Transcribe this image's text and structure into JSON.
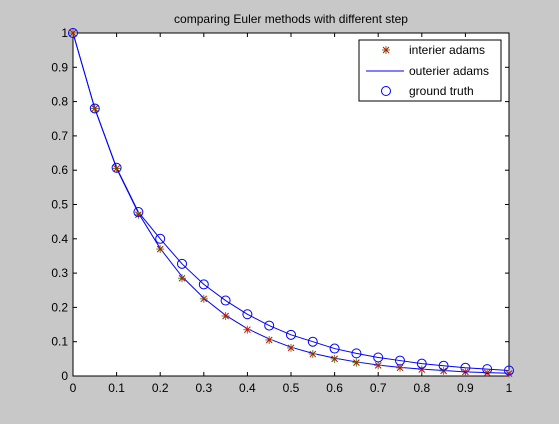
{
  "chart_data": {
    "type": "line",
    "title": "comparing Euler methods with different step",
    "xlabel": "",
    "ylabel": "",
    "xlim": [
      0,
      1
    ],
    "ylim": [
      0,
      1
    ],
    "xticks": [
      "0",
      "0.1",
      "0.2",
      "0.3",
      "0.4",
      "0.5",
      "0.6",
      "0.7",
      "0.8",
      "0.9",
      "1"
    ],
    "yticks": [
      "0",
      "0.1",
      "0.2",
      "0.3",
      "0.4",
      "0.5",
      "0.6",
      "0.7",
      "0.8",
      "0.9",
      "1"
    ],
    "grid": false,
    "legend_position": "top-right",
    "x": [
      0,
      0.05,
      0.1,
      0.15,
      0.2,
      0.25,
      0.3,
      0.35,
      0.4,
      0.45,
      0.5,
      0.55,
      0.6,
      0.65,
      0.7,
      0.75,
      0.8,
      0.85,
      0.9,
      0.95,
      1
    ],
    "series": [
      {
        "name": "interier adams",
        "marker": "asterisk",
        "color": "#e00000",
        "values": [
          1,
          0.78,
          0.605,
          0.47,
          0.37,
          0.285,
          0.225,
          0.175,
          0.135,
          0.105,
          0.082,
          0.064,
          0.05,
          0.039,
          0.031,
          0.024,
          0.019,
          0.015,
          0.012,
          0.009,
          0.007
        ]
      },
      {
        "name": "outerier adams",
        "marker": "line",
        "color": "#0000ff",
        "values": [
          1,
          0.78,
          0.605,
          0.475,
          0.372,
          0.29,
          0.227,
          0.177,
          0.138,
          0.108,
          0.084,
          0.066,
          0.052,
          0.041,
          0.032,
          0.025,
          0.02,
          0.016,
          0.012,
          0.01,
          0.008
        ]
      },
      {
        "name": "ground truth",
        "marker": "circle",
        "color": "#0000ff",
        "values": [
          1,
          0.78,
          0.607,
          0.478,
          0.4,
          0.327,
          0.267,
          0.22,
          0.18,
          0.147,
          0.12,
          0.1,
          0.08,
          0.066,
          0.054,
          0.045,
          0.036,
          0.03,
          0.024,
          0.02,
          0.016
        ]
      }
    ]
  }
}
